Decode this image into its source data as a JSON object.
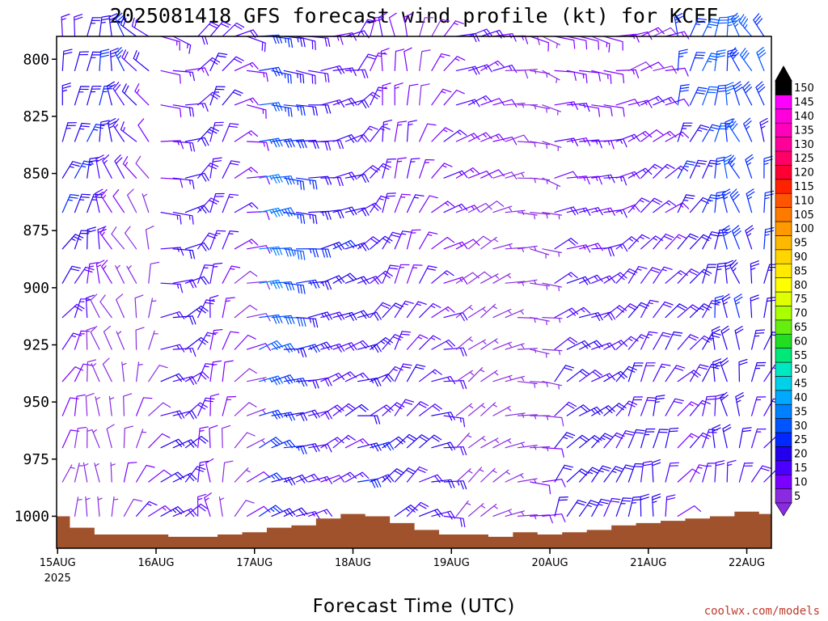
{
  "chart_data": {
    "type": "wind-barb",
    "title": "2025081418 GFS forecast wind profile (kt) for KCEF",
    "xlabel": "Forecast Time (UTC)",
    "ylabel": "",
    "credit": "coolwx.com/models",
    "y_axis": {
      "ticks": [
        800,
        825,
        850,
        875,
        900,
        925,
        950,
        975,
        1000
      ],
      "ylim": [
        790,
        1014
      ],
      "orientation": "pressure decreasing upward"
    },
    "x_axis": {
      "ticks": [
        {
          "day": 0,
          "label": "15AUG",
          "sublabel": "2025"
        },
        {
          "day": 1,
          "label": "16AUG",
          "sublabel": ""
        },
        {
          "day": 2,
          "label": "17AUG",
          "sublabel": ""
        },
        {
          "day": 3,
          "label": "18AUG",
          "sublabel": ""
        },
        {
          "day": 4,
          "label": "19AUG",
          "sublabel": ""
        },
        {
          "day": 5,
          "label": "20AUG",
          "sublabel": ""
        },
        {
          "day": 6,
          "label": "21AUG",
          "sublabel": ""
        },
        {
          "day": 7,
          "label": "22AUG",
          "sublabel": ""
        }
      ],
      "xlim_days": [
        -0.01,
        7.25
      ]
    },
    "barb_levels": [
      790,
      805,
      820,
      836,
      852,
      867,
      883,
      898,
      913,
      927,
      941,
      956,
      970,
      985,
      1000
    ],
    "colorbar": {
      "unit": "kt",
      "labels": [
        5,
        10,
        15,
        20,
        25,
        30,
        35,
        40,
        45,
        50,
        55,
        60,
        65,
        70,
        75,
        80,
        85,
        90,
        95,
        100,
        105,
        110,
        115,
        120,
        125,
        130,
        135,
        140,
        145,
        150
      ],
      "colors": [
        "#8a2be2",
        "#7b00ff",
        "#4b00ff",
        "#2200ee",
        "#0028ff",
        "#0055ff",
        "#0080ff",
        "#00a8ff",
        "#00d0e8",
        "#00e8c0",
        "#00e878",
        "#22dd22",
        "#66ee11",
        "#aaff00",
        "#e0ff00",
        "#ffff00",
        "#ffea00",
        "#ffd500",
        "#ffb800",
        "#ff9900",
        "#ff7a00",
        "#ff5500",
        "#ff2200",
        "#ff0033",
        "#ff0066",
        "#ff0099",
        "#ff00bb",
        "#ff00dd",
        "#ff00ff",
        "#000000"
      ]
    },
    "surface_pressure": {
      "x_days": [
        0,
        0.25,
        0.5,
        0.75,
        1.0,
        1.25,
        1.5,
        1.75,
        2.0,
        2.25,
        2.5,
        2.75,
        3.0,
        3.25,
        3.5,
        3.75,
        4.0,
        4.25,
        4.5,
        4.75,
        5.0,
        5.25,
        5.5,
        5.75,
        6.0,
        6.25,
        6.5,
        6.75,
        7.0,
        7.25
      ],
      "values": [
        1000,
        1005,
        1008,
        1008,
        1008,
        1009,
        1009,
        1008,
        1007,
        1005,
        1004,
        1001,
        999,
        1000,
        1003,
        1006,
        1008,
        1008,
        1009,
        1007,
        1008,
        1007,
        1006,
        1004,
        1003,
        1002,
        1001,
        1000,
        998,
        999
      ]
    },
    "surface_color": "#a0522d"
  }
}
